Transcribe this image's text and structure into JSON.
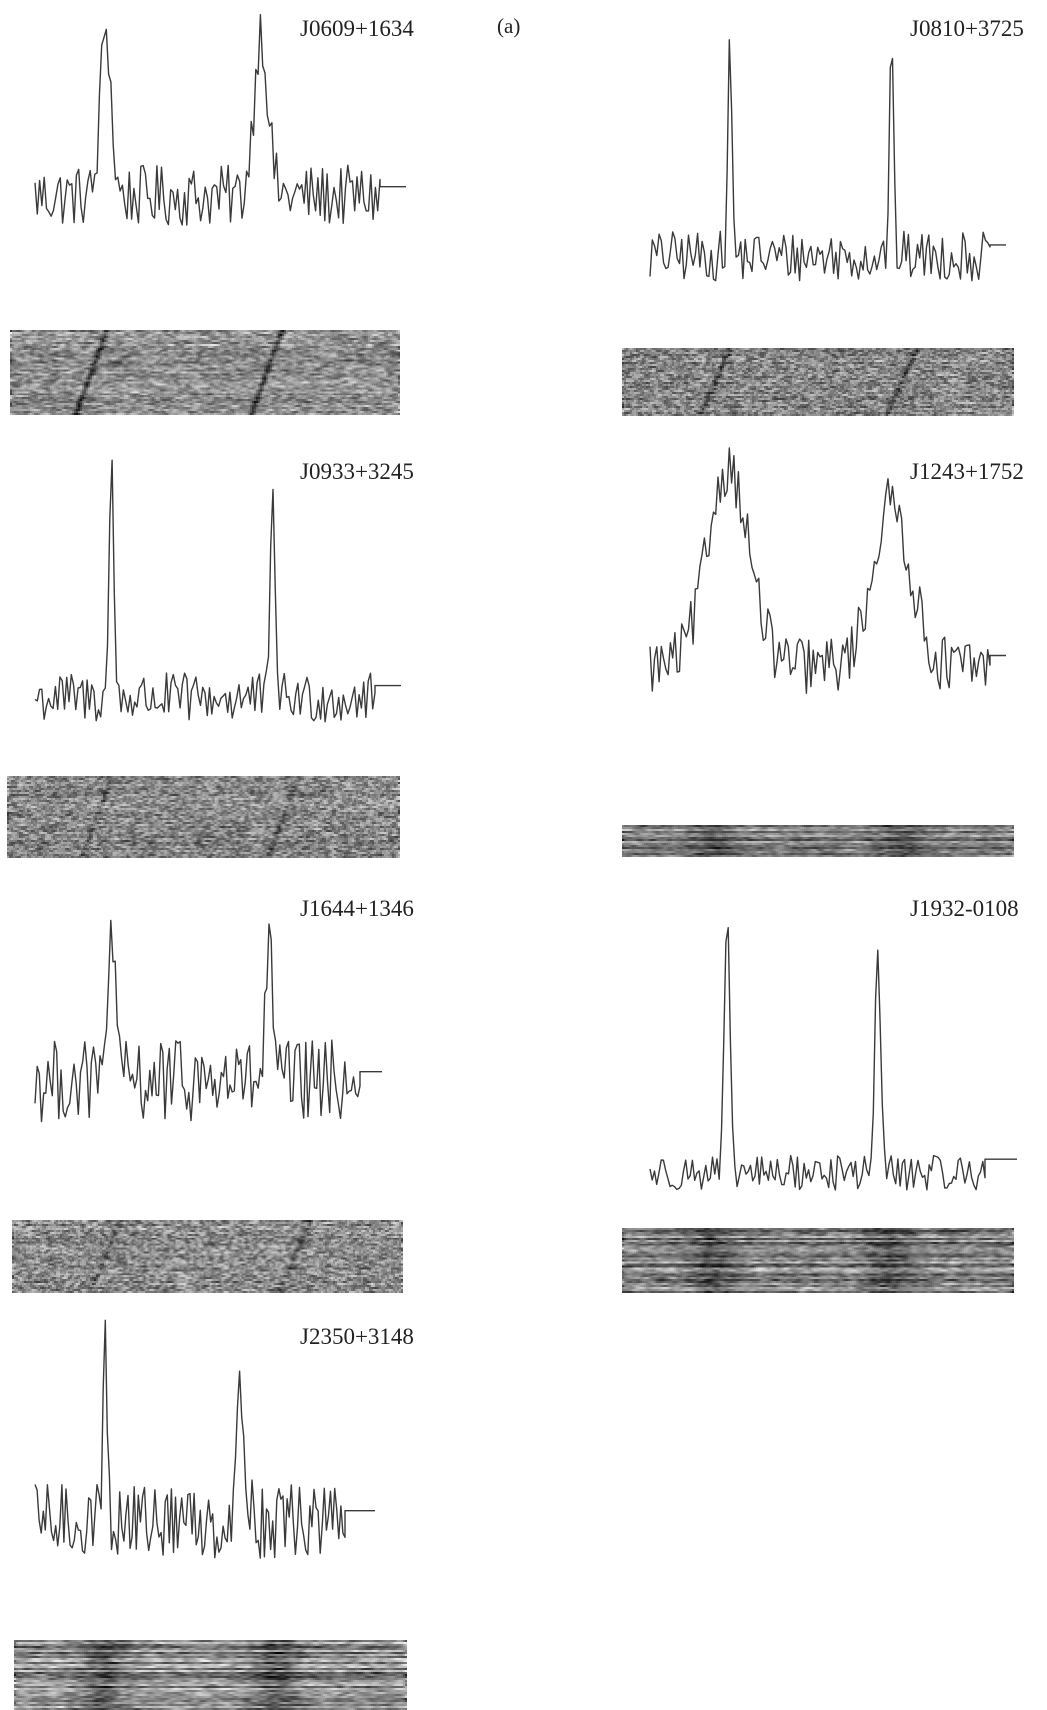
{
  "figure": {
    "panel_label": "(a)"
  },
  "chart_data": [
    {
      "type": "line",
      "name": "J0609+1634",
      "components": [
        "profile",
        "waterfall"
      ],
      "peaks": [
        {
          "phase": 0.205,
          "height": 1.0
        },
        {
          "phase": 0.655,
          "height": 0.96
        }
      ],
      "widths": [
        0.015,
        0.02
      ],
      "noise": 0.18,
      "baseline": 0.4,
      "waterfall": {
        "drift": true,
        "drift_strength": 0.45,
        "contrast": 0.9,
        "blur": 2
      }
    },
    {
      "type": "line",
      "name": "J0810+3725",
      "components": [
        "profile",
        "waterfall"
      ],
      "peaks": [
        {
          "phase": 0.235,
          "height": 1.0
        },
        {
          "phase": 0.71,
          "height": 1.0
        }
      ],
      "widths": [
        0.006,
        0.006
      ],
      "noise": 0.12,
      "baseline": 0.22,
      "waterfall": {
        "drift": true,
        "drift_strength": 0.35,
        "contrast": 0.8,
        "blur": 1
      }
    },
    {
      "type": "line",
      "name": "J0933+3245",
      "components": [
        "profile",
        "waterfall"
      ],
      "peaks": [
        {
          "phase": 0.225,
          "height": 1.0
        },
        {
          "phase": 0.7,
          "height": 0.88
        }
      ],
      "widths": [
        0.007,
        0.007
      ],
      "noise": 0.11,
      "baseline": 0.2,
      "waterfall": {
        "drift": true,
        "drift_strength": 0.25,
        "contrast": 0.8,
        "blur": 1
      }
    },
    {
      "type": "line",
      "name": "J1243+1752",
      "components": [
        "profile",
        "waterfall"
      ],
      "peaks": [
        {
          "phase": 0.23,
          "height": 1.0
        },
        {
          "phase": 0.71,
          "height": 0.81
        }
      ],
      "widths": [
        0.06,
        0.055
      ],
      "noise": 0.14,
      "baseline": 0.3,
      "waterfall": {
        "drift": false,
        "drift_strength": 0.0,
        "contrast": 0.7,
        "blur": 3
      }
    },
    {
      "type": "line",
      "name": "J1644+1346",
      "components": [
        "profile",
        "waterfall"
      ],
      "peaks": [
        {
          "phase": 0.235,
          "height": 1.0
        },
        {
          "phase": 0.72,
          "height": 0.81
        }
      ],
      "widths": [
        0.01,
        0.01
      ],
      "noise": 0.24,
      "baseline": 0.4,
      "waterfall": {
        "drift": true,
        "drift_strength": 0.25,
        "contrast": 0.85,
        "blur": 1
      }
    },
    {
      "type": "line",
      "name": "J1932-0108",
      "components": [
        "profile",
        "waterfall"
      ],
      "peaks": [
        {
          "phase": 0.23,
          "height": 1.0
        },
        {
          "phase": 0.68,
          "height": 0.85
        }
      ],
      "widths": [
        0.008,
        0.009
      ],
      "noise": 0.07,
      "baseline": 0.12,
      "waterfall": {
        "drift": false,
        "drift_strength": 0.0,
        "contrast": 0.8,
        "blur": 3
      }
    },
    {
      "type": "line",
      "name": "J2350+3148",
      "components": [
        "profile",
        "waterfall"
      ],
      "peaks": [
        {
          "phase": 0.225,
          "height": 1.0
        },
        {
          "phase": 0.665,
          "height": 0.7
        }
      ],
      "widths": [
        0.007,
        0.013
      ],
      "noise": 0.2,
      "baseline": 0.35,
      "waterfall": {
        "drift": false,
        "drift_strength": 0.0,
        "contrast": 0.9,
        "blur": 4
      }
    }
  ]
}
